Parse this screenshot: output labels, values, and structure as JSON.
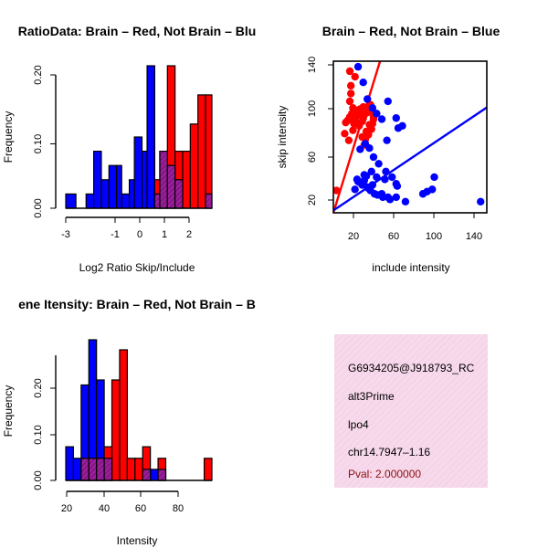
{
  "colors": {
    "red": "#ff0000",
    "blue": "#0000ff",
    "overlap": "#9a1e9a",
    "info_bg": "#f7d9ec",
    "pval_text": "#8b1010"
  },
  "chart_data": [
    {
      "type": "bar",
      "title": "RatioData: Brain – Red, Not Brain – Blu",
      "xlabel": "Log2 Ratio Skip/Include",
      "ylabel": "Frequency",
      "x_ticks": [
        "-3",
        "-1",
        "0",
        "1",
        "2"
      ],
      "x_tick_values": [
        -3,
        -1,
        0,
        1,
        2
      ],
      "y_ticks": [
        "0.00",
        "0.10",
        "0.20"
      ],
      "y_tick_values": [
        0,
        0.1,
        0.2
      ],
      "xlim": [
        -3,
        2.75
      ],
      "ylim": [
        0,
        0.22
      ],
      "bin_edges": [
        -3.0,
        -2.6,
        -2.2,
        -1.9,
        -1.6,
        -1.3,
        -1.0,
        -0.8,
        -0.5,
        -0.3,
        0.0,
        0.2,
        0.5,
        0.7,
        1.0,
        1.3,
        1.6,
        1.9,
        2.2,
        2.5,
        2.75
      ],
      "series": [
        {
          "name": "Not Brain",
          "color": "blue",
          "values": [
            0.022,
            0.0,
            0.022,
            0.088,
            0.044,
            0.066,
            0.066,
            0.022,
            0.044,
            0.11,
            0.088,
            0.22,
            0.0,
            0.0,
            0.0,
            0.0,
            0.0,
            0.0,
            0.0,
            0.0
          ]
        },
        {
          "name": "Brain",
          "color": "red",
          "values": [
            0.0,
            0.0,
            0.0,
            0.0,
            0.0,
            0.0,
            0.0,
            0.0,
            0.0,
            0.0,
            0.0,
            0.0,
            0.044,
            0.088,
            0.22,
            0.088,
            0.088,
            0.13,
            0.175,
            0.175
          ]
        },
        {
          "name": "Overlap",
          "color": "overlap",
          "values": [
            0.0,
            0.0,
            0.0,
            0.0,
            0.0,
            0.0,
            0.0,
            0.0,
            0.0,
            0.0,
            0.0,
            0.0,
            0.022,
            0.088,
            0.066,
            0.044,
            0.0,
            0.0,
            0.0,
            0.022
          ]
        }
      ]
    },
    {
      "type": "scatter",
      "title": "Brain – Red, Not Brain – Blue",
      "xlabel": "include intensity",
      "ylabel": "skip intensity",
      "x_ticks": [
        "20",
        "60",
        "100",
        "140"
      ],
      "x_tick_values": [
        20,
        60,
        100,
        140
      ],
      "y_ticks": [
        "20",
        "60",
        "100",
        "140"
      ],
      "y_tick_values": [
        20,
        60,
        100,
        140
      ],
      "xlim": [
        5,
        154
      ],
      "ylim": [
        8,
        144
      ],
      "series": [
        {
          "name": "Brain",
          "color": "red",
          "x": [
            21,
            26,
            22,
            22,
            21,
            24,
            28,
            31,
            35,
            40,
            42,
            44,
            43,
            42,
            39,
            36,
            34,
            33,
            30,
            28,
            26,
            25,
            23,
            21,
            19,
            17,
            16,
            20,
            24,
            29,
            34,
            38,
            41,
            44,
            40,
            37,
            33,
            31,
            27,
            8,
            24,
            35
          ],
          "y": [
            135,
            130,
            122,
            115,
            108,
            102,
            98,
            101,
            96,
            104,
            99,
            94,
            88,
            83,
            78,
            74,
            93,
            90,
            86,
            95,
            92,
            88,
            97,
            94,
            91,
            89,
            79,
            73,
            96,
            100,
            103,
            98,
            105,
            92,
            87,
            81,
            76,
            97,
            89,
            28,
            82,
            69
          ]
        },
        {
          "name": "Not Brain",
          "color": "blue",
          "x": [
            29,
            34,
            38,
            43,
            47,
            52,
            58,
            66,
            72,
            36,
            40,
            44,
            49,
            56,
            62,
            28,
            31,
            33,
            35,
            37,
            39,
            41,
            45,
            48,
            53,
            60,
            66,
            75,
            92,
            96,
            101,
            103,
            148,
            52,
            58,
            68,
            67,
            66,
            55,
            47,
            43,
            38,
            35,
            29,
            26,
            57,
            31,
            42
          ],
          "y": [
            139,
            125,
            110,
            102,
            97,
            92,
            108,
            93,
            86,
            70,
            66,
            58,
            52,
            45,
            40,
            38,
            35,
            33,
            37,
            41,
            30,
            28,
            25,
            24,
            22,
            20,
            22,
            18,
            25,
            27,
            29,
            40,
            18,
            25,
            22,
            84,
            32,
            34,
            38,
            40,
            33,
            31,
            42,
            36,
            29,
            73,
            65,
            45
          ]
        }
      ],
      "fit_lines": [
        {
          "name": "Brain fit",
          "color": "red",
          "slope": 3.0,
          "intercept": -7
        },
        {
          "name": "Not Brain fit",
          "color": "blue",
          "slope": 0.62,
          "intercept": 7
        }
      ]
    },
    {
      "type": "bar",
      "title": "ene Itensity: Brain – Red, Not Brain – B",
      "xlabel": "Intensity",
      "ylabel": "Frequency",
      "x_ticks": [
        "20",
        "40",
        "60",
        "80"
      ],
      "x_tick_values": [
        20,
        40,
        60,
        80
      ],
      "y_ticks": [
        "0.00",
        "0.10",
        "0.20"
      ],
      "y_tick_values": [
        0,
        0.1,
        0.2
      ],
      "xlim": [
        20,
        96
      ],
      "ylim": [
        0,
        0.28
      ],
      "bin_edges": [
        20,
        24,
        28,
        32,
        36,
        40,
        44,
        48,
        52,
        56,
        60,
        64,
        68,
        72,
        76,
        80,
        84,
        88,
        92,
        96
      ],
      "series": [
        {
          "name": "Not Brain",
          "color": "blue",
          "values": [
            0.067,
            0.044,
            0.19,
            0.28,
            0.2,
            0.044,
            0.0,
            0.0,
            0.0,
            0.0,
            0.022,
            0.022,
            0.022,
            0.0,
            0.0,
            0.0,
            0.0,
            0.0,
            0.0
          ]
        },
        {
          "name": "Brain",
          "color": "red",
          "values": [
            0.0,
            0.0,
            0.044,
            0.044,
            0.044,
            0.067,
            0.2,
            0.26,
            0.044,
            0.044,
            0.067,
            0.0,
            0.044,
            0.0,
            0.0,
            0.0,
            0.0,
            0.0,
            0.044
          ]
        },
        {
          "name": "Overlap",
          "color": "overlap",
          "values": [
            0.0,
            0.0,
            0.044,
            0.044,
            0.044,
            0.044,
            0.0,
            0.0,
            0.0,
            0.0,
            0.022,
            0.0,
            0.022,
            0.0,
            0.0,
            0.0,
            0.0,
            0.0,
            0.0
          ]
        }
      ]
    }
  ],
  "info_panel": {
    "gene_id": "G6934205@J918793_RC",
    "event_type": "alt3Prime",
    "tissue": "lpo4",
    "location": "chr14.7947–1.16",
    "pval": "Pval: 2.000000"
  }
}
